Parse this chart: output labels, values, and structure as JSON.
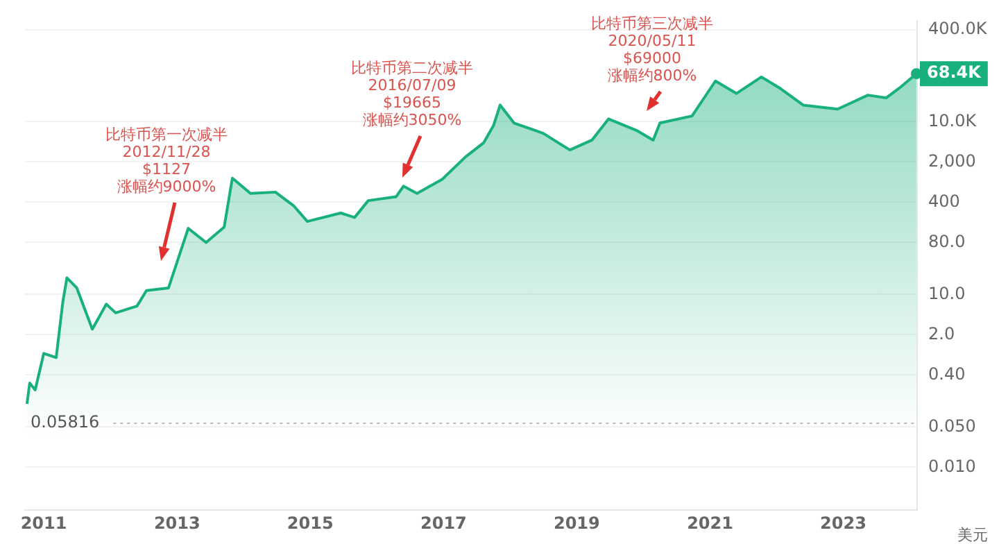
{
  "chart_data": {
    "type": "area",
    "x": [
      "2010-10-01",
      "2010-10-16",
      "2010-11-15",
      "2011-01-01",
      "2011-03-10",
      "2011-04-16",
      "2011-05-08",
      "2011-07-01",
      "2011-09-24",
      "2011-12-10",
      "2012-01-30",
      "2012-05-26",
      "2012-07-17",
      "2012-11-15",
      "2013-03-03",
      "2013-06-09",
      "2013-09-16",
      "2013-10-31",
      "2014-02-07",
      "2014-06-24",
      "2014-10-01",
      "2014-12-16",
      "2015-06-17",
      "2015-09-01",
      "2015-11-15",
      "2016-04-16",
      "2016-05-26",
      "2016-08-08",
      "2016-12-24",
      "2017-05-01",
      "2017-08-08",
      "2017-10-01",
      "2017-11-07",
      "2018-01-22",
      "2018-07-01",
      "2018-11-24",
      "2019-03-25",
      "2019-06-24",
      "2019-11-24",
      "2020-02-24",
      "2020-04-01",
      "2020-09-24",
      "2021-01-30",
      "2021-05-26",
      "2021-10-09",
      "2022-01-15",
      "2022-05-26",
      "2022-12-01",
      "2023-05-16",
      "2023-08-24",
      "2023-11-07",
      "2024-02-06"
    ],
    "series": [
      {
        "color": "#18b07b",
        "values": [
          0.126,
          0.29,
          0.22,
          0.95,
          0.8,
          7.6,
          19.5,
          13,
          2.5,
          6.8,
          4.8,
          6.3,
          11.7,
          13,
          141,
          80,
          148,
          1050,
          570,
          600,
          350,
          186,
          260,
          218,
          427,
          500,
          760,
          570,
          1000,
          2450,
          4300,
          8500,
          19500,
          9500,
          6300,
          3240,
          4800,
          11200,
          7100,
          4800,
          9500,
          12600,
          51000,
          31000,
          60000,
          39000,
          19500,
          16600,
          29000,
          26000,
          39000,
          68400
        ]
      }
    ],
    "ylabel": "美元",
    "log": "y",
    "xlim": [
      "2010-09-20",
      "2024-02-10"
    ],
    "xticks": [
      "2011",
      "2013",
      "2015",
      "2017",
      "2019",
      "2021",
      "2023"
    ],
    "ylim": [
      0.0018,
      560000
    ],
    "yticks": [
      {
        "value": 400000,
        "label": "400.0K"
      },
      {
        "value": 10000,
        "label": "10.0K"
      },
      {
        "value": 2000,
        "label": "2,000"
      },
      400,
      {
        "value": 80,
        "label": "80.0"
      },
      {
        "value": 10,
        "label": "10.0"
      },
      {
        "value": 2,
        "label": "2.0"
      },
      {
        "value": 0.4,
        "label": "0.40"
      },
      {
        "value": 0.05,
        "label": "0.050"
      },
      {
        "value": 0.01,
        "label": "0.010"
      }
    ],
    "grid": "y",
    "legend": false,
    "ref_lines": [
      {
        "axis": "y",
        "value": 0.05816,
        "label": "0.05816",
        "color": "#bbbbbb",
        "line_style": "dotted"
      }
    ],
    "annotations": [
      "比特币第一次减半\n2012/11/28\n$1127\n涨幅约9000%",
      "比特币第二次减半\n2016/07/09\n$19665\n涨幅约3050%",
      "比特币第三次减半\n2020/05/11\n$69000\n涨幅约800%",
      {
        "text": "68.4K",
        "x": "2024-02-06",
        "y": 68400
      }
    ]
  }
}
